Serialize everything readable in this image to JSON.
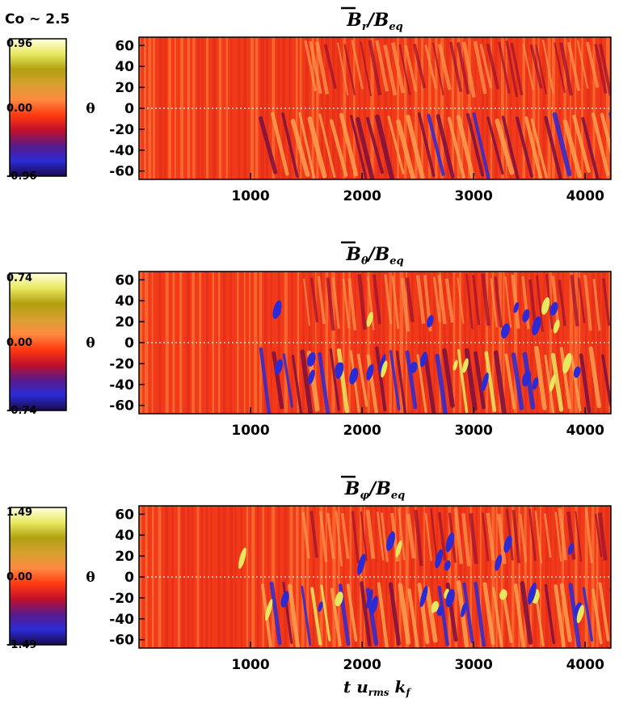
{
  "header": {
    "label": "Co ~ 2.5"
  },
  "colors": {
    "colormap": [
      "#1a0a4a",
      "#2b2bd6",
      "#5a1a8a",
      "#c0102a",
      "#ff3a10",
      "#ff8a40",
      "#d8a030",
      "#b0a010",
      "#e8e860",
      "#ffffe0"
    ],
    "background": "#f03a1a"
  },
  "xlabel": {
    "main": "t u",
    "sub1": "rms",
    "mid": " k",
    "sub2": "f"
  },
  "chart_data": [
    {
      "type": "heatmap",
      "title": {
        "base": "B",
        "sub": "r",
        "den": "/B",
        "den_sub": "eq"
      },
      "ylabel": "θ",
      "x_ticks": [
        1000,
        2000,
        3000,
        4000
      ],
      "y_ticks": [
        60,
        40,
        20,
        0,
        -20,
        -40,
        -60
      ],
      "xlim": [
        0,
        4230
      ],
      "ylim": [
        -68,
        68
      ],
      "colorbar": {
        "max": "0.96",
        "mid": "0.00",
        "min": "-0.96"
      },
      "equator_dashed": true
    },
    {
      "type": "heatmap",
      "title": {
        "base": "B",
        "sub": "θ",
        "den": "/B",
        "den_sub": "eq"
      },
      "ylabel": "θ",
      "x_ticks": [
        1000,
        2000,
        3000,
        4000
      ],
      "y_ticks": [
        60,
        40,
        20,
        0,
        -20,
        -40,
        -60
      ],
      "xlim": [
        0,
        4230
      ],
      "ylim": [
        -68,
        68
      ],
      "colorbar": {
        "max": "0.74",
        "mid": "0.00",
        "min": "-0.74"
      },
      "equator_dashed": true
    },
    {
      "type": "heatmap",
      "title": {
        "base": "B",
        "sub": "φ",
        "den": "/B",
        "den_sub": "eq"
      },
      "ylabel": "θ",
      "x_ticks": [
        1000,
        2000,
        3000,
        4000
      ],
      "y_ticks": [
        60,
        40,
        20,
        0,
        -20,
        -40,
        -60
      ],
      "xlim": [
        0,
        4230
      ],
      "ylim": [
        -68,
        68
      ],
      "colorbar": {
        "max": "1.49",
        "mid": "0.00",
        "min": "-1.49"
      },
      "equator_dashed": true
    }
  ]
}
